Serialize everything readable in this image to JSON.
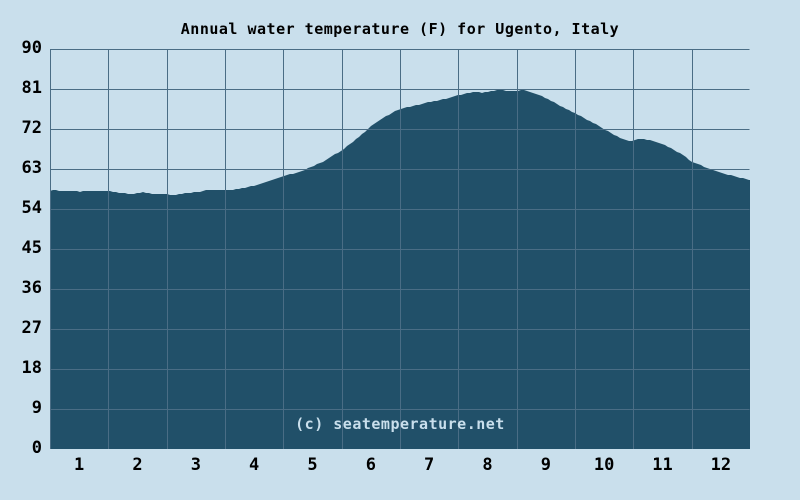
{
  "chart": {
    "title": "Annual water temperature (F) for Ugento, Italy",
    "watermark": "(c) seatemperature.net"
  },
  "chart_data": {
    "type": "area",
    "title": "Annual water temperature (F) for Ugento, Italy",
    "xlabel": "",
    "ylabel": "",
    "annotation": "(c) seatemperature.net",
    "categories": [
      "1",
      "2",
      "3",
      "4",
      "5",
      "6",
      "7",
      "8",
      "9",
      "10",
      "11",
      "12"
    ],
    "monthly_avg_f": [
      58.0,
      57.5,
      57.8,
      59.6,
      64.0,
      73.5,
      78.0,
      80.3,
      78.6,
      72.5,
      68.0,
      62.3
    ],
    "yticks": [
      0,
      9,
      18,
      27,
      36,
      45,
      54,
      63,
      72,
      81,
      90
    ],
    "ylim": [
      0,
      90
    ],
    "xlim_months": [
      0,
      12
    ],
    "grid": true,
    "legend": false,
    "series": [
      {
        "name": "Water temperature (F)",
        "points": [
          [
            0.0,
            58.0
          ],
          [
            0.08,
            58.3
          ],
          [
            0.2,
            58.0
          ],
          [
            0.35,
            58.1
          ],
          [
            0.5,
            57.9
          ],
          [
            0.65,
            58.1
          ],
          [
            0.8,
            58.0
          ],
          [
            0.92,
            58.1
          ],
          [
            1.0,
            58.0
          ],
          [
            1.15,
            57.7
          ],
          [
            1.3,
            57.5
          ],
          [
            1.45,
            57.4
          ],
          [
            1.58,
            57.8
          ],
          [
            1.7,
            57.5
          ],
          [
            1.85,
            57.3
          ],
          [
            2.0,
            57.3
          ],
          [
            2.15,
            57.2
          ],
          [
            2.3,
            57.5
          ],
          [
            2.45,
            57.7
          ],
          [
            2.58,
            57.9
          ],
          [
            2.72,
            58.3
          ],
          [
            2.85,
            58.2
          ],
          [
            3.0,
            58.2
          ],
          [
            3.15,
            58.4
          ],
          [
            3.3,
            58.7
          ],
          [
            3.45,
            59.1
          ],
          [
            3.6,
            59.6
          ],
          [
            3.75,
            60.2
          ],
          [
            3.9,
            60.9
          ],
          [
            4.0,
            61.4
          ],
          [
            4.15,
            61.9
          ],
          [
            4.3,
            62.5
          ],
          [
            4.45,
            63.3
          ],
          [
            4.6,
            64.2
          ],
          [
            4.75,
            65.1
          ],
          [
            4.9,
            66.4
          ],
          [
            5.0,
            67.2
          ],
          [
            5.15,
            68.7
          ],
          [
            5.3,
            70.3
          ],
          [
            5.45,
            72.0
          ],
          [
            5.6,
            73.6
          ],
          [
            5.75,
            74.8
          ],
          [
            5.9,
            75.9
          ],
          [
            6.0,
            76.4
          ],
          [
            6.15,
            77.0
          ],
          [
            6.3,
            77.4
          ],
          [
            6.45,
            77.9
          ],
          [
            6.6,
            78.3
          ],
          [
            6.75,
            78.7
          ],
          [
            6.9,
            79.2
          ],
          [
            7.0,
            79.6
          ],
          [
            7.15,
            80.0
          ],
          [
            7.28,
            80.3
          ],
          [
            7.4,
            80.2
          ],
          [
            7.55,
            80.5
          ],
          [
            7.7,
            80.8
          ],
          [
            7.85,
            80.5
          ],
          [
            8.0,
            80.6
          ],
          [
            8.12,
            80.8
          ],
          [
            8.25,
            80.3
          ],
          [
            8.4,
            79.6
          ],
          [
            8.55,
            78.6
          ],
          [
            8.7,
            77.6
          ],
          [
            8.85,
            76.5
          ],
          [
            9.0,
            75.6
          ],
          [
            9.15,
            74.5
          ],
          [
            9.3,
            73.5
          ],
          [
            9.45,
            72.3
          ],
          [
            9.6,
            71.2
          ],
          [
            9.75,
            70.2
          ],
          [
            9.9,
            69.4
          ],
          [
            10.0,
            69.3
          ],
          [
            10.1,
            69.8
          ],
          [
            10.25,
            69.6
          ],
          [
            10.4,
            69.1
          ],
          [
            10.55,
            68.3
          ],
          [
            10.7,
            67.3
          ],
          [
            10.85,
            66.1
          ],
          [
            11.0,
            64.7
          ],
          [
            11.15,
            63.9
          ],
          [
            11.3,
            63.0
          ],
          [
            11.45,
            62.3
          ],
          [
            11.6,
            61.8
          ],
          [
            11.75,
            61.3
          ],
          [
            11.9,
            60.8
          ],
          [
            12.0,
            60.6
          ]
        ]
      }
    ],
    "colors": {
      "background": "#c9dfec",
      "area_fill": "#215069",
      "gridline": "#4a6d85",
      "title_text": "#000000",
      "axis_text": "#000000",
      "watermark_text": "#c9dfec"
    }
  }
}
